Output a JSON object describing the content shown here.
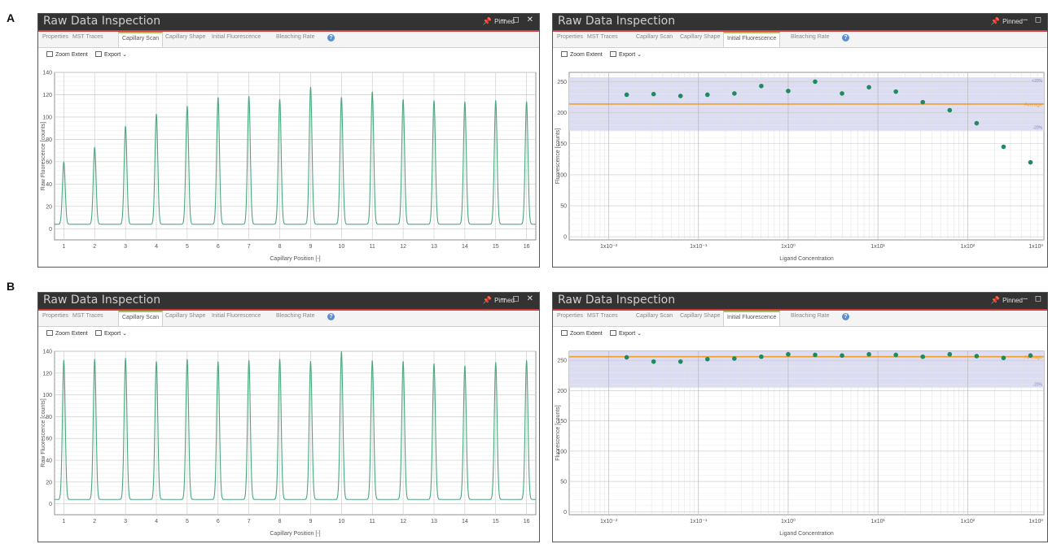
{
  "panels": [
    {
      "letter": "A",
      "scan": {
        "title": "Raw Data Inspection",
        "pinned": "Pinned",
        "controls": "– ◻ ✕",
        "tabs": [
          "Properties",
          "MST Traces",
          "Capillary Scan",
          "Capillary Shape",
          "Initial Fluorescence",
          "Bleaching Rate"
        ],
        "active_tab": 2,
        "toolbar": {
          "zoom": "Zoom Extent",
          "export": "Export ⌄"
        }
      },
      "fluor": {
        "title": "Raw Data Inspection",
        "pinned": "Pinned",
        "controls": "– ◻",
        "tabs": [
          "Properties",
          "MST Traces",
          "Capillary Scan",
          "Capillary Shape",
          "Initial Fluorescence",
          "Bleaching Rate"
        ],
        "active_tab": 4,
        "toolbar": {
          "zoom": "Zoom Extent",
          "export": "Export ⌄"
        }
      }
    },
    {
      "letter": "B",
      "scan": {
        "title": "Raw Data Inspection",
        "pinned": "Pinned",
        "controls": "– ◻ ✕",
        "tabs": [
          "Properties",
          "MST Traces",
          "Capillary Scan",
          "Capillary Shape",
          "Initial Fluorescence",
          "Bleaching Rate"
        ],
        "active_tab": 2,
        "toolbar": {
          "zoom": "Zoom Extent",
          "export": "Export ⌄"
        }
      },
      "fluor": {
        "title": "Raw Data Inspection",
        "pinned": "Pinned",
        "controls": "– ◻",
        "tabs": [
          "Properties",
          "MST Traces",
          "Capillary Scan",
          "Capillary Shape",
          "Initial Fluorescence",
          "Bleaching Rate"
        ],
        "active_tab": 4,
        "toolbar": {
          "zoom": "Zoom Extent",
          "export": "Export ⌄"
        }
      }
    }
  ],
  "colors": {
    "trace": "#4aa97e",
    "point": "#1e8a5f",
    "band": "#dcdcf2",
    "average": "#f0a030",
    "title_bar": "#333333",
    "accent_red": "#d03a3a"
  },
  "chart_data": [
    {
      "id": "A-scan",
      "type": "line",
      "xlabel": "Capillary Position [-]",
      "ylabel": "Raw Fluorescence [counts]",
      "x_ticks": [
        "1",
        "2",
        "3",
        "4",
        "5",
        "6",
        "7",
        "8",
        "9",
        "10",
        "11",
        "12",
        "13",
        "14",
        "15",
        "16"
      ],
      "y_ticks": [
        "0",
        "20",
        "40",
        "60",
        "80",
        "100",
        "120",
        "140"
      ],
      "xlim": [
        0.7,
        16.3
      ],
      "ylim": [
        -10,
        140
      ],
      "baseline": 4,
      "peak_positions": [
        1,
        2,
        3,
        4,
        5,
        6,
        7,
        8,
        9,
        10,
        11,
        12,
        13,
        14,
        15,
        16
      ],
      "peak_heights": [
        60,
        73,
        92,
        103,
        110,
        118,
        119,
        116,
        127,
        118,
        123,
        116,
        115,
        114,
        115,
        114
      ]
    },
    {
      "id": "A-fluor",
      "type": "scatter",
      "xlabel": "Ligand Concentration",
      "ylabel": "Fluorescence [counts]",
      "x_ticks": [
        "1x10⁻²",
        "1x10⁻¹",
        "1x10⁰",
        "1x10¹",
        "1x10²",
        "1x10³"
      ],
      "x_tick_exponents": [
        -2,
        -1,
        0,
        1,
        2,
        3
      ],
      "y_ticks": [
        "0",
        "50",
        "100",
        "150",
        "200",
        "250"
      ],
      "xlim_log10": [
        -2.35,
        2.85
      ],
      "ylim": [
        -5,
        265
      ],
      "average": 214,
      "band": [
        171,
        257
      ],
      "labels": {
        "upper": "+20%",
        "average": "Average",
        "lower": "-20%"
      },
      "x_log10": [
        -1.8,
        -1.5,
        -1.2,
        -0.9,
        -0.6,
        -0.3,
        0.0,
        0.3,
        0.6,
        0.9,
        1.2,
        1.5,
        1.8,
        2.1,
        2.4,
        2.7
      ],
      "y": [
        229,
        230,
        227,
        229,
        231,
        243,
        235,
        250,
        231,
        241,
        234,
        217,
        204,
        183,
        145,
        120
      ]
    },
    {
      "id": "B-scan",
      "type": "line",
      "xlabel": "Capillary Position [-]",
      "ylabel": "Raw Fluorescence [counts]",
      "x_ticks": [
        "1",
        "2",
        "3",
        "4",
        "5",
        "6",
        "7",
        "8",
        "9",
        "10",
        "11",
        "12",
        "13",
        "14",
        "15",
        "16"
      ],
      "y_ticks": [
        "0",
        "20",
        "40",
        "60",
        "80",
        "100",
        "120",
        "140"
      ],
      "xlim": [
        0.7,
        16.3
      ],
      "ylim": [
        -10,
        140
      ],
      "baseline": 4,
      "peak_positions": [
        1,
        2,
        3,
        4,
        5,
        6,
        7,
        8,
        9,
        10,
        11,
        12,
        13,
        14,
        15,
        16
      ],
      "peak_heights": [
        132,
        133,
        134,
        131,
        133,
        131,
        132,
        133,
        131,
        140,
        132,
        131,
        129,
        127,
        130,
        132
      ]
    },
    {
      "id": "B-fluor",
      "type": "scatter",
      "xlabel": "Ligand Concentration",
      "ylabel": "Fluorescence [counts]",
      "x_ticks": [
        "1x10⁻²",
        "1x10⁻¹",
        "1x10⁰",
        "1x10¹",
        "1x10²",
        "1x10³"
      ],
      "x_tick_exponents": [
        -2,
        -1,
        0,
        1,
        2,
        3
      ],
      "y_ticks": [
        "0",
        "50",
        "100",
        "150",
        "200",
        "250"
      ],
      "xlim_log10": [
        -2.35,
        2.85
      ],
      "ylim": [
        -5,
        265
      ],
      "average": 256,
      "band": [
        205,
        307
      ],
      "labels": {
        "upper": "",
        "average": "Average",
        "lower": "-20%"
      },
      "x_log10": [
        -1.8,
        -1.5,
        -1.2,
        -0.9,
        -0.6,
        -0.3,
        0.0,
        0.3,
        0.6,
        0.9,
        1.2,
        1.5,
        1.8,
        2.1,
        2.4,
        2.7
      ],
      "y": [
        255,
        248,
        248,
        252,
        253,
        256,
        260,
        259,
        258,
        260,
        259,
        256,
        260,
        257,
        254,
        258
      ]
    }
  ]
}
